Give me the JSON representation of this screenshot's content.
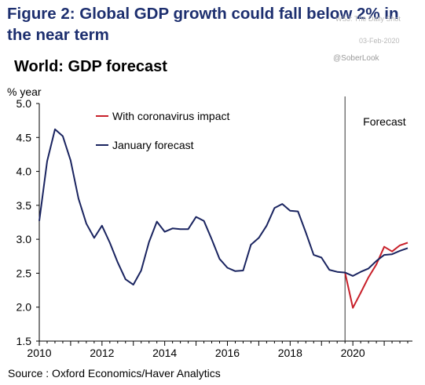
{
  "figure_title": "Figure 2: Global GDP growth could fall below 2% in the near term",
  "watermark": {
    "top": "WSJ: The Daily Shot",
    "date": "03-Feb-2020",
    "handle": "@SoberLook"
  },
  "source": "Source : Oxford Economics/Haver Analytics",
  "colors": {
    "impact": "#c8202a",
    "forecast": "#1a2460",
    "title": "#1d2f6f"
  },
  "chart_data": {
    "type": "line",
    "title": "World: GDP forecast",
    "ylabel": "% year",
    "xlabel": "",
    "xlim": [
      2010,
      2021.75
    ],
    "ylim": [
      1.5,
      5.0
    ],
    "x_ticks": [
      "2010",
      "2012",
      "2014",
      "2016",
      "2018",
      "2020"
    ],
    "y_ticks": [
      "1.5",
      "2.0",
      "2.5",
      "3.0",
      "3.5",
      "4.0",
      "4.5",
      "5.0"
    ],
    "grid": false,
    "legend_position": "top-left",
    "forecast_start": 2019.75,
    "forecast_label": "Forecast",
    "series": [
      {
        "name": "With coronavirus impact",
        "color": "#c8202a",
        "x": [
          2019.75,
          2020.0,
          2020.25,
          2020.5,
          2020.75,
          2021.0,
          2021.25,
          2021.5,
          2021.75
        ],
        "values": [
          2.51,
          1.99,
          2.21,
          2.44,
          2.63,
          2.89,
          2.82,
          2.91,
          2.95
        ]
      },
      {
        "name": "January forecast",
        "color": "#1a2460",
        "x": [
          2010.0,
          2010.25,
          2010.5,
          2010.75,
          2011.0,
          2011.25,
          2011.5,
          2011.75,
          2012.0,
          2012.25,
          2012.5,
          2012.75,
          2013.0,
          2013.25,
          2013.5,
          2013.75,
          2014.0,
          2014.25,
          2014.5,
          2014.75,
          2015.0,
          2015.25,
          2015.5,
          2015.75,
          2016.0,
          2016.25,
          2016.5,
          2016.75,
          2017.0,
          2017.25,
          2017.5,
          2017.75,
          2018.0,
          2018.25,
          2018.5,
          2018.75,
          2019.0,
          2019.25,
          2019.5,
          2019.75,
          2020.0,
          2020.25,
          2020.5,
          2020.75,
          2021.0,
          2021.25,
          2021.5,
          2021.75
        ],
        "values": [
          3.27,
          4.15,
          4.62,
          4.52,
          4.16,
          3.6,
          3.23,
          3.02,
          3.2,
          2.95,
          2.66,
          2.41,
          2.33,
          2.54,
          2.96,
          3.26,
          3.11,
          3.16,
          3.15,
          3.15,
          3.33,
          3.27,
          3.0,
          2.71,
          2.58,
          2.53,
          2.54,
          2.92,
          3.02,
          3.2,
          3.46,
          3.52,
          3.42,
          3.41,
          3.1,
          2.77,
          2.73,
          2.55,
          2.52,
          2.51,
          2.46,
          2.52,
          2.57,
          2.68,
          2.77,
          2.78,
          2.83,
          2.87
        ]
      }
    ]
  }
}
